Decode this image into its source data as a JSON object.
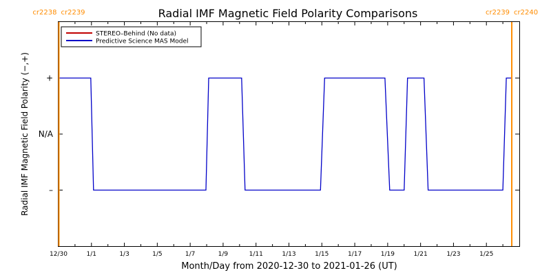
{
  "chart_data": {
    "type": "line",
    "title": "Radial IMF Magnetic Field Polarity Comparisons",
    "xlabel": "Month/Day from 2020-12-30 to 2021-01-26 (UT)",
    "ylabel": "Radial IMF Magnetic Field Polarity (−,+)",
    "xlim": [
      "2020-12-30",
      "2021-01-27"
    ],
    "ylim": [
      -2,
      2
    ],
    "x_tick_labels": [
      "12/30",
      "1/1",
      "1/3",
      "1/5",
      "1/7",
      "1/9",
      "1/11",
      "1/13",
      "1/15",
      "1/17",
      "1/19",
      "1/21",
      "1/23",
      "1/25"
    ],
    "y_ticks": [
      {
        "value": 1,
        "label": "+"
      },
      {
        "value": 0,
        "label": "N/A"
      },
      {
        "value": -1,
        "label": "–"
      }
    ],
    "legend": {
      "placement": "top-left",
      "entries": [
        {
          "label": "STEREO–Behind (No data)",
          "color": "#c00000"
        },
        {
          "label": "Predictive Science MAS Model",
          "color": "#0000c8"
        }
      ]
    },
    "series": [
      {
        "name": "Predictive Science MAS Model",
        "color": "#0000c8",
        "points": [
          [
            "2020-12-30",
            1
          ],
          [
            "2020-12-31T23:00",
            1
          ],
          [
            "2021-01-01T03:00",
            -1
          ],
          [
            "2021-01-07T23:00",
            -1
          ],
          [
            "2021-01-08T03:00",
            1
          ],
          [
            "2021-01-10T03:00",
            1
          ],
          [
            "2021-01-10T08:00",
            -1
          ],
          [
            "2021-01-14T22:00",
            -1
          ],
          [
            "2021-01-15T04:00",
            1
          ],
          [
            "2021-01-18T20:00",
            1
          ],
          [
            "2021-01-19T03:00",
            -1
          ],
          [
            "2021-01-20T00:00",
            -1
          ],
          [
            "2021-01-20T05:00",
            1
          ],
          [
            "2021-01-21T05:00",
            1
          ],
          [
            "2021-01-21T11:00",
            -1
          ],
          [
            "2021-01-26T00:00",
            -1
          ],
          [
            "2021-01-26T05:00",
            1
          ],
          [
            "2021-01-26T12:00",
            1
          ]
        ]
      }
    ],
    "carrington_markers": [
      {
        "date": "2020-12-30T00:30",
        "label_left": "cr2238",
        "label_right": "cr2239",
        "color": "#ff8c00"
      },
      {
        "date": "2021-01-26T13:00",
        "label_left": "cr2239",
        "label_right": "cr2240",
        "color": "#ff8c00"
      }
    ]
  }
}
